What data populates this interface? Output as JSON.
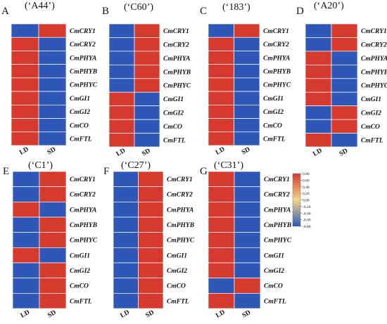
{
  "figure": {
    "colorbar": {
      "ticks": [
        "0.80",
        "0.60",
        "0.40",
        "0.20",
        "0.00",
        "-0.20",
        "-0.40",
        "-0.60",
        "-0.80"
      ],
      "colors": {
        "max": "#d63a2e",
        "mid": "#f0d68a",
        "min": "#2f57b8"
      }
    }
  },
  "chart_data": [
    {
      "type": "heatmap",
      "panel": "A",
      "title": "(‘A44’)",
      "columns": [
        "LD",
        "SD"
      ],
      "rows": [
        "CmCRY1",
        "CmCRY2",
        "CmPHYA",
        "CmPHYB",
        "CmPHYC",
        "CmGI1",
        "CmGI2",
        "CmCO",
        "CmFTL"
      ],
      "values": [
        [
          -0.8,
          0.8
        ],
        [
          0.8,
          -0.8
        ],
        [
          0.8,
          -0.8
        ],
        [
          0.8,
          -0.8
        ],
        [
          0.8,
          -0.8
        ],
        [
          0.8,
          -0.8
        ],
        [
          0.8,
          -0.8
        ],
        [
          0.8,
          -0.8
        ],
        [
          0.8,
          -0.8
        ]
      ],
      "zlim": [
        -0.8,
        0.8
      ]
    },
    {
      "type": "heatmap",
      "panel": "B",
      "title": "(‘C60’)",
      "columns": [
        "LD",
        "SD"
      ],
      "rows": [
        "CmCRY1",
        "CmCRY2",
        "CmPHYA",
        "CmPHYB",
        "CmPHYC",
        "CmGI1",
        "CmGI2",
        "CmCO",
        "CmFTL"
      ],
      "values": [
        [
          -0.8,
          0.8
        ],
        [
          -0.8,
          0.8
        ],
        [
          -0.8,
          0.8
        ],
        [
          -0.8,
          0.8
        ],
        [
          -0.8,
          0.8
        ],
        [
          0.8,
          -0.8
        ],
        [
          0.8,
          -0.8
        ],
        [
          0.8,
          -0.8
        ],
        [
          0.8,
          -0.8
        ]
      ],
      "zlim": [
        -0.8,
        0.8
      ]
    },
    {
      "type": "heatmap",
      "panel": "C",
      "title": "(‘183’)",
      "columns": [
        "LD",
        "SD"
      ],
      "rows": [
        "CmCRY1",
        "CmCRY2",
        "CmPHYA",
        "CmPHYB",
        "CmPHYC",
        "CmGI1",
        "CmGI2",
        "CmCO",
        "CmFTL"
      ],
      "values": [
        [
          -0.8,
          0.8
        ],
        [
          0.8,
          -0.8
        ],
        [
          0.8,
          -0.8
        ],
        [
          0.8,
          -0.8
        ],
        [
          0.8,
          -0.8
        ],
        [
          0.8,
          -0.8
        ],
        [
          0.8,
          -0.8
        ],
        [
          0.8,
          -0.8
        ],
        [
          0.8,
          -0.8
        ]
      ],
      "zlim": [
        -0.8,
        0.8
      ]
    },
    {
      "type": "heatmap",
      "panel": "D",
      "title": "(‘A20’)",
      "columns": [
        "LD",
        "SD"
      ],
      "rows": [
        "CmCRY1",
        "CmCRY2",
        "CmPHYA",
        "CmPHYB",
        "CmPHYC",
        "CmGI1",
        "CmGI2",
        "CmCO",
        "CmFTL"
      ],
      "values": [
        [
          -0.8,
          0.8
        ],
        [
          -0.8,
          0.8
        ],
        [
          0.8,
          -0.8
        ],
        [
          0.8,
          -0.8
        ],
        [
          0.8,
          -0.8
        ],
        [
          0.8,
          -0.8
        ],
        [
          -0.8,
          0.8
        ],
        [
          -0.8,
          0.8
        ],
        [
          0.8,
          -0.8
        ]
      ],
      "zlim": [
        -0.8,
        0.8
      ]
    },
    {
      "type": "heatmap",
      "panel": "E",
      "title": "(‘C1’)",
      "columns": [
        "LD",
        "SD"
      ],
      "rows": [
        "CmCRY1",
        "CmCRY2",
        "CmPHYA",
        "CmPHYB",
        "CmPHYC",
        "CmGI1",
        "CmGI2",
        "CmCO",
        "CmFTL"
      ],
      "values": [
        [
          -0.8,
          0.8
        ],
        [
          -0.8,
          0.8
        ],
        [
          0.8,
          -0.8
        ],
        [
          -0.8,
          0.8
        ],
        [
          -0.8,
          0.8
        ],
        [
          0.8,
          -0.8
        ],
        [
          -0.8,
          0.8
        ],
        [
          -0.8,
          0.8
        ],
        [
          -0.8,
          0.8
        ]
      ],
      "zlim": [
        -0.8,
        0.8
      ]
    },
    {
      "type": "heatmap",
      "panel": "F",
      "title": "(‘C27’)",
      "columns": [
        "LD",
        "SD"
      ],
      "rows": [
        "CmCRY1",
        "CmCRY2",
        "CmPHYA",
        "CmPHYB",
        "CmPHYC",
        "CmGI1",
        "CmGI2",
        "CmCO",
        "CmFTL"
      ],
      "values": [
        [
          -0.8,
          0.8
        ],
        [
          -0.8,
          0.8
        ],
        [
          -0.8,
          0.8
        ],
        [
          -0.8,
          0.8
        ],
        [
          -0.8,
          0.8
        ],
        [
          -0.8,
          0.8
        ],
        [
          -0.8,
          0.8
        ],
        [
          -0.8,
          0.8
        ],
        [
          -0.8,
          0.8
        ]
      ],
      "zlim": [
        -0.8,
        0.8
      ]
    },
    {
      "type": "heatmap",
      "panel": "G",
      "title": "(‘C31’)",
      "columns": [
        "LD",
        "SD"
      ],
      "rows": [
        "CmCRY1",
        "CmCRY2",
        "CmPHYA",
        "CmPHYB",
        "CmPHYC",
        "CmGI1",
        "CmGI2",
        "CmCO",
        "CmFTL"
      ],
      "values": [
        [
          0.8,
          -0.8
        ],
        [
          0.8,
          -0.8
        ],
        [
          0.8,
          -0.8
        ],
        [
          0.8,
          -0.8
        ],
        [
          0.8,
          -0.8
        ],
        [
          0.8,
          -0.8
        ],
        [
          0.8,
          -0.8
        ],
        [
          -0.8,
          0.8
        ],
        [
          0.8,
          -0.8
        ]
      ],
      "zlim": [
        -0.8,
        0.8
      ]
    }
  ]
}
